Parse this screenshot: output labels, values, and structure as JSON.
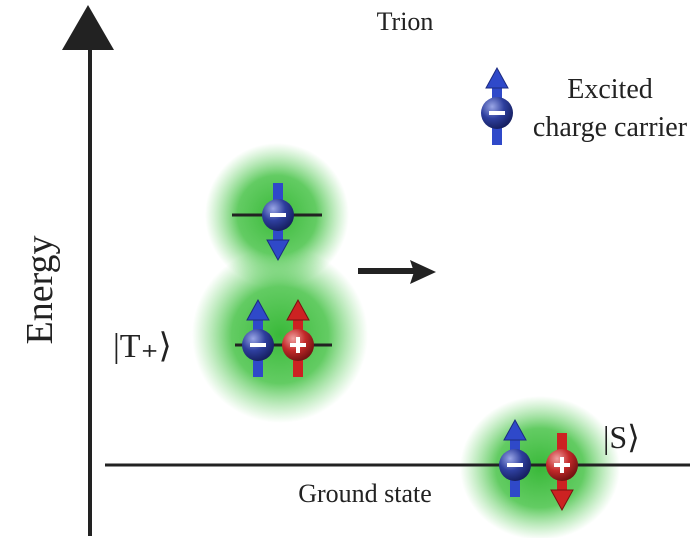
{
  "title": "Trion",
  "legend": {
    "line1": "Excited",
    "line2": "charge carrier"
  },
  "axis_label": "Energy",
  "states": {
    "triplet": "|T₊⟩",
    "singlet": "|S⟩",
    "ground": "Ground state"
  }
}
